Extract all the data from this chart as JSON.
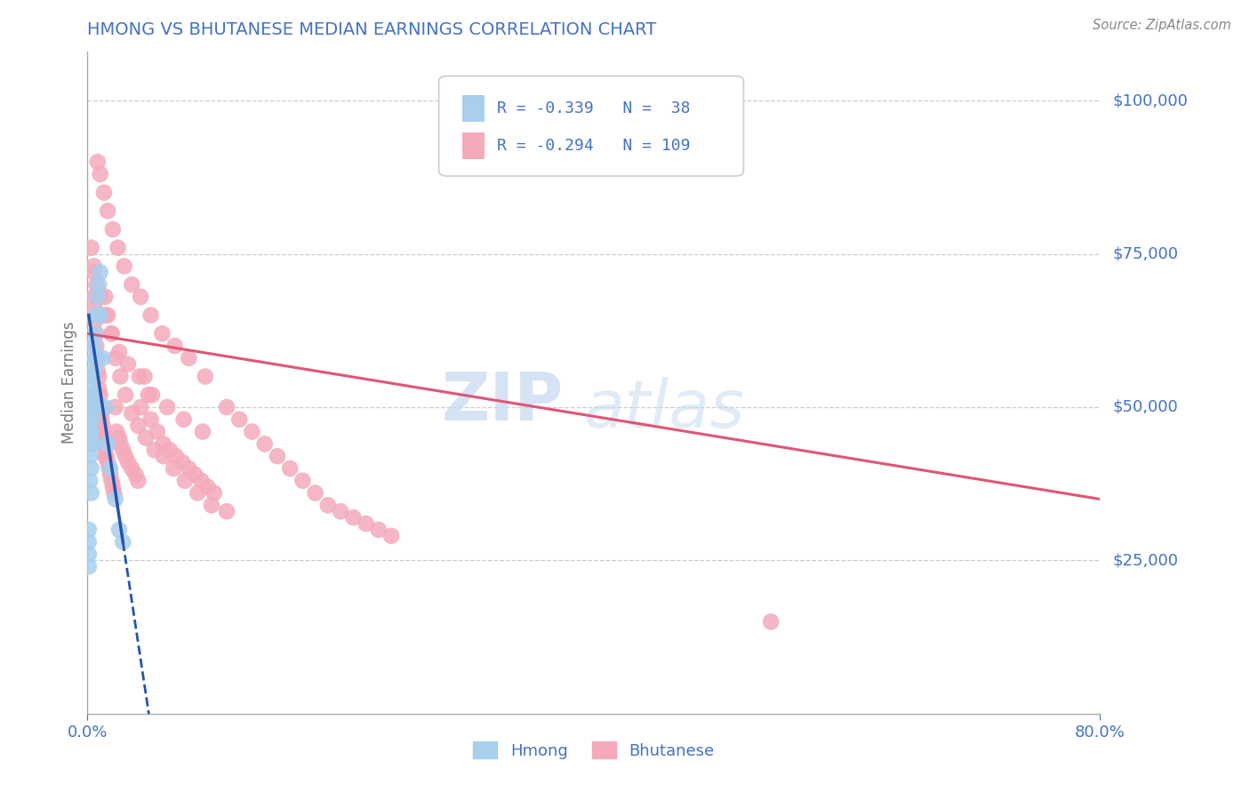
{
  "title": "HMONG VS BHUTANESE MEDIAN EARNINGS CORRELATION CHART",
  "source": "Source: ZipAtlas.com",
  "ylabel": "Median Earnings",
  "xmin": 0.0,
  "xmax": 0.8,
  "ymin": 0,
  "ymax": 108000,
  "yticks": [
    25000,
    50000,
    75000,
    100000
  ],
  "ytick_labels": [
    "$25,000",
    "$50,000",
    "$75,000",
    "$100,000"
  ],
  "watermark_zip": "ZIP",
  "watermark_atlas": "atlas",
  "legend_R_hmong": "-0.339",
  "legend_N_hmong": "38",
  "legend_R_bhutanese": "-0.294",
  "legend_N_bhutanese": "109",
  "legend_label_hmong": "Hmong",
  "legend_label_bhutanese": "Bhutanese",
  "hmong_color": "#A8CFEE",
  "bhutanese_color": "#F4AABB",
  "title_color": "#4472C4",
  "ytick_color": "#4472C4",
  "trend_hmong_color": "#2255AA",
  "trend_bhutanese_color": "#E05575",
  "background_color": "#FFFFFF",
  "grid_color": "#CCCCCC",
  "hmong_x": [
    0.001,
    0.001,
    0.001,
    0.001,
    0.002,
    0.002,
    0.002,
    0.002,
    0.002,
    0.003,
    0.003,
    0.003,
    0.003,
    0.003,
    0.003,
    0.004,
    0.004,
    0.004,
    0.004,
    0.005,
    0.005,
    0.005,
    0.005,
    0.006,
    0.006,
    0.007,
    0.007,
    0.008,
    0.009,
    0.01,
    0.01,
    0.012,
    0.014,
    0.016,
    0.018,
    0.022,
    0.025,
    0.028
  ],
  "hmong_y": [
    30000,
    28000,
    26000,
    24000,
    52000,
    48000,
    46000,
    42000,
    38000,
    54000,
    50000,
    46000,
    44000,
    40000,
    36000,
    55000,
    52000,
    48000,
    44000,
    60000,
    56000,
    50000,
    44000,
    62000,
    58000,
    65000,
    58000,
    68000,
    70000,
    72000,
    65000,
    58000,
    50000,
    44000,
    40000,
    35000,
    30000,
    28000
  ],
  "bhutanese_x": [
    0.005,
    0.005,
    0.006,
    0.006,
    0.007,
    0.007,
    0.008,
    0.008,
    0.009,
    0.009,
    0.01,
    0.01,
    0.011,
    0.011,
    0.012,
    0.012,
    0.013,
    0.013,
    0.014,
    0.014,
    0.015,
    0.016,
    0.017,
    0.018,
    0.019,
    0.02,
    0.021,
    0.022,
    0.023,
    0.025,
    0.026,
    0.028,
    0.03,
    0.032,
    0.035,
    0.038,
    0.04,
    0.042,
    0.045,
    0.048,
    0.05,
    0.055,
    0.06,
    0.065,
    0.07,
    0.075,
    0.08,
    0.085,
    0.09,
    0.095,
    0.1,
    0.11,
    0.12,
    0.13,
    0.14,
    0.15,
    0.16,
    0.17,
    0.18,
    0.19,
    0.2,
    0.21,
    0.22,
    0.23,
    0.24,
    0.014,
    0.016,
    0.019,
    0.022,
    0.026,
    0.03,
    0.035,
    0.04,
    0.046,
    0.053,
    0.06,
    0.068,
    0.077,
    0.087,
    0.098,
    0.11,
    0.008,
    0.01,
    0.013,
    0.016,
    0.02,
    0.024,
    0.029,
    0.035,
    0.042,
    0.05,
    0.059,
    0.069,
    0.08,
    0.093,
    0.003,
    0.005,
    0.007,
    0.01,
    0.014,
    0.019,
    0.025,
    0.032,
    0.041,
    0.051,
    0.063,
    0.076,
    0.091,
    0.54
  ],
  "bhutanese_y": [
    72000,
    68000,
    66000,
    64000,
    62000,
    60000,
    58000,
    56000,
    55000,
    53000,
    52000,
    50000,
    49000,
    48000,
    47000,
    46000,
    45000,
    44000,
    43000,
    42000,
    42000,
    41000,
    40000,
    39000,
    38000,
    37000,
    36000,
    50000,
    46000,
    45000,
    44000,
    43000,
    42000,
    41000,
    40000,
    39000,
    38000,
    50000,
    55000,
    52000,
    48000,
    46000,
    44000,
    43000,
    42000,
    41000,
    40000,
    39000,
    38000,
    37000,
    36000,
    50000,
    48000,
    46000,
    44000,
    42000,
    40000,
    38000,
    36000,
    34000,
    33000,
    32000,
    31000,
    30000,
    29000,
    68000,
    65000,
    62000,
    58000,
    55000,
    52000,
    49000,
    47000,
    45000,
    43000,
    42000,
    40000,
    38000,
    36000,
    34000,
    33000,
    90000,
    88000,
    85000,
    82000,
    79000,
    76000,
    73000,
    70000,
    68000,
    65000,
    62000,
    60000,
    58000,
    55000,
    76000,
    73000,
    70000,
    68000,
    65000,
    62000,
    59000,
    57000,
    55000,
    52000,
    50000,
    48000,
    46000,
    15000
  ]
}
